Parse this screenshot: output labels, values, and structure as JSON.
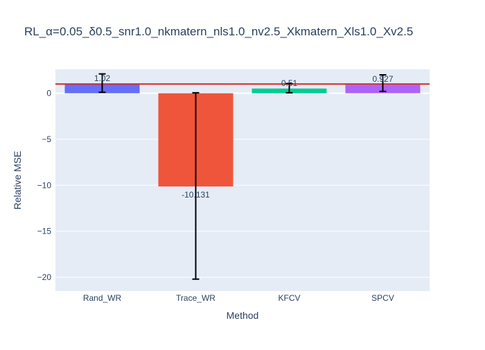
{
  "chart_data": {
    "type": "bar",
    "title": "RL_α=0.05_δ0.5_snr1.0_nkmatern_nls1.0_nv2.5_Xkmatern_Xls1.0_Xv2.5",
    "xlabel": "Method",
    "ylabel": "Relative MSE",
    "categories": [
      "Rand_WR",
      "Trace_WR",
      "KFCV",
      "SPCV"
    ],
    "values": [
      1.02,
      -10.131,
      0.51,
      0.927
    ],
    "value_labels": [
      "1.02",
      "-10.131",
      "0.51",
      "0.927"
    ],
    "error_low": [
      0.1,
      -20.2,
      0.05,
      0.2
    ],
    "error_high": [
      2.1,
      0.05,
      1.05,
      2.0
    ],
    "colors": [
      "#636efa",
      "#ef553b",
      "#00cc96",
      "#ab63fa"
    ],
    "reference_line": {
      "y": 1.0,
      "color": "#d62728"
    },
    "yticks": [
      0,
      -5,
      -10,
      -15,
      -20
    ],
    "ytick_labels": [
      "0",
      "−5",
      "−10",
      "−15",
      "−20"
    ],
    "ylim": [
      -21.5,
      2.6
    ],
    "grid": true,
    "background": "#e5ecf6"
  }
}
